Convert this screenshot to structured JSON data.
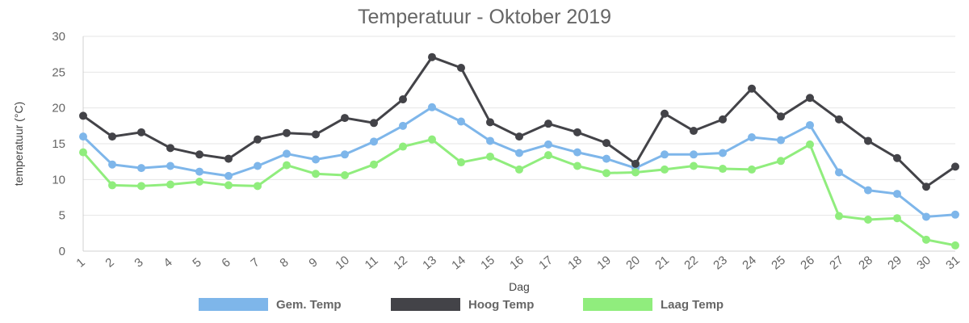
{
  "chart_data": {
    "type": "line",
    "title": "Temperatuur - Oktober 2019",
    "xlabel": "Dag",
    "ylabel": "temperatuur (°C)",
    "ylim": [
      0,
      30
    ],
    "yticks": [
      0,
      5,
      10,
      15,
      20,
      25,
      30
    ],
    "grid": true,
    "legend_position": "bottom",
    "categories": [
      "1",
      "2",
      "3",
      "4",
      "5",
      "6",
      "7",
      "8",
      "9",
      "10",
      "11",
      "12",
      "13",
      "14",
      "15",
      "16",
      "17",
      "18",
      "19",
      "20",
      "21",
      "22",
      "23",
      "24",
      "25",
      "26",
      "27",
      "28",
      "29",
      "30",
      "31"
    ],
    "series": [
      {
        "name": "Gem. Temp",
        "color": "#7eb6ea",
        "values": [
          16.0,
          12.1,
          11.6,
          11.9,
          11.1,
          10.5,
          11.9,
          13.6,
          12.8,
          13.5,
          15.3,
          17.5,
          20.1,
          18.1,
          15.4,
          13.7,
          14.9,
          13.8,
          12.9,
          11.6,
          13.5,
          13.5,
          13.7,
          15.9,
          15.5,
          17.6,
          11.0,
          8.5,
          8.0,
          4.8,
          5.1
        ]
      },
      {
        "name": "Hoog Temp",
        "color": "#434348",
        "values": [
          18.9,
          16.0,
          16.6,
          14.4,
          13.5,
          12.9,
          15.6,
          16.5,
          16.3,
          18.6,
          17.9,
          21.2,
          27.1,
          25.6,
          18.0,
          16.0,
          17.8,
          16.6,
          15.1,
          12.2,
          19.2,
          16.8,
          18.4,
          22.7,
          18.8,
          21.4,
          18.4,
          15.4,
          13.0,
          9.0,
          11.8
        ]
      },
      {
        "name": "Laag Temp",
        "color": "#90ed7d",
        "values": [
          13.8,
          9.2,
          9.1,
          9.3,
          9.7,
          9.2,
          9.1,
          12.0,
          10.8,
          10.6,
          12.1,
          14.6,
          15.6,
          12.4,
          13.2,
          11.4,
          13.4,
          11.9,
          10.9,
          11.0,
          11.4,
          11.9,
          11.5,
          11.4,
          12.6,
          14.9,
          4.9,
          4.4,
          4.6,
          1.6,
          0.8
        ]
      }
    ]
  }
}
